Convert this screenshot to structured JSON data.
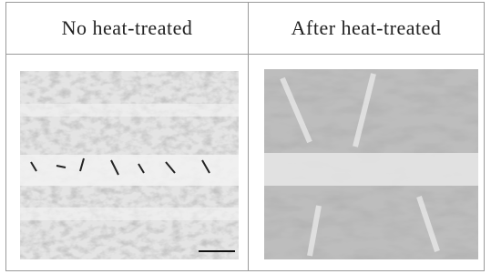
{
  "table": {
    "columns": [
      "No heat-treated",
      "After heat-treated"
    ]
  }
}
